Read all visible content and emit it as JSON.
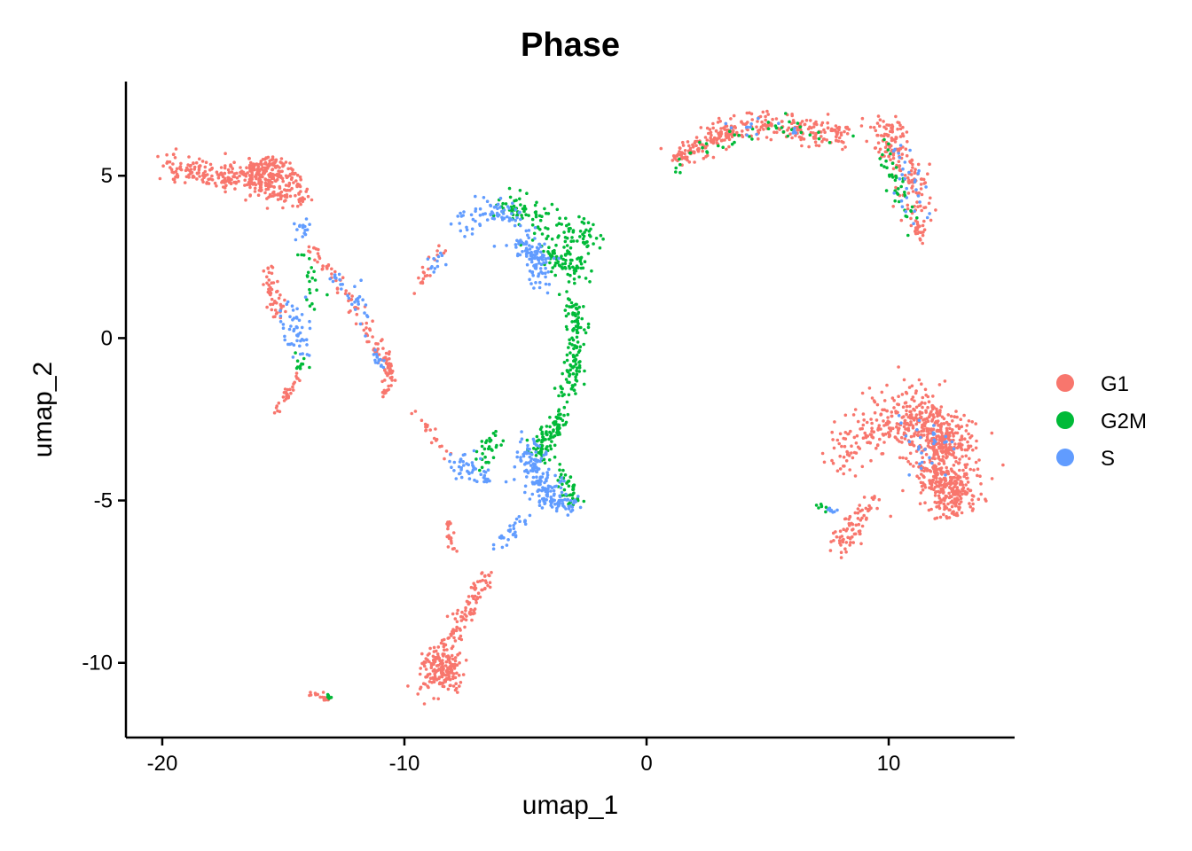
{
  "chart_data": {
    "type": "scatter",
    "title": "Phase",
    "xlabel": "umap_1",
    "ylabel": "umap_2",
    "xlim": [
      -21.5,
      15.2
    ],
    "ylim": [
      -12.3,
      7.9
    ],
    "x_ticks": [
      -20,
      -10,
      0,
      10
    ],
    "y_ticks": [
      5,
      0,
      -5,
      -10
    ],
    "grid": false,
    "legend_position": "right",
    "series": [
      {
        "name": "G1",
        "color": "#F8766D",
        "clusters": [
          {
            "x": [
              -19.8,
              -18.5,
              -17.2,
              -16.0,
              -15.3
            ],
            "y": [
              5.4,
              5.1,
              4.9,
              5.2,
              5.2
            ],
            "spread": 0.25,
            "n": 260
          },
          {
            "x": [
              -16.5,
              -15.6,
              -15.0
            ],
            "y": [
              5.0,
              4.8,
              4.4
            ],
            "spread": 0.3,
            "n": 120
          },
          {
            "x": [
              -15.1,
              -14.6,
              -14.2
            ],
            "y": [
              5.4,
              4.8,
              4.2
            ],
            "spread": 0.2,
            "n": 60
          },
          {
            "x": [
              -15.5,
              -15.6,
              -15.2
            ],
            "y": [
              2.2,
              1.5,
              0.8
            ],
            "spread": 0.15,
            "n": 50
          },
          {
            "x": [
              -14.3,
              -14.9,
              -15.3
            ],
            "y": [
              -1.1,
              -1.7,
              -2.3
            ],
            "spread": 0.1,
            "n": 30
          },
          {
            "x": [
              -14.0,
              -13.2,
              -12.4,
              -11.6,
              -11.0,
              -10.6
            ],
            "y": [
              2.8,
              2.2,
              1.4,
              0.5,
              -0.3,
              -1.2
            ],
            "spread": 0.15,
            "n": 90
          },
          {
            "x": [
              -10.6,
              -10.7,
              -10.9
            ],
            "y": [
              -0.6,
              -1.3,
              -1.8
            ],
            "spread": 0.1,
            "n": 30
          },
          {
            "x": [
              -9.5,
              -9.0,
              -8.5
            ],
            "y": [
              1.5,
              2.2,
              2.8
            ],
            "spread": 0.12,
            "n": 20
          },
          {
            "x": [
              -9.5,
              -8.8,
              -8.2
            ],
            "y": [
              -2.3,
              -3.0,
              -3.6
            ],
            "spread": 0.12,
            "n": 20
          },
          {
            "x": [
              -8.3,
              -8.1,
              -7.9
            ],
            "y": [
              -5.5,
              -6.1,
              -6.6
            ],
            "spread": 0.1,
            "n": 20
          },
          {
            "x": [
              -6.5,
              -7.2,
              -7.8,
              -8.4,
              -8.8
            ],
            "y": [
              -7.2,
              -8.1,
              -8.9,
              -9.5,
              -10.0
            ],
            "spread": 0.2,
            "n": 120
          },
          {
            "x": [
              -8.9,
              -8.5,
              -8.0
            ],
            "y": [
              -10.2,
              -10.5,
              -10.0
            ],
            "spread": 0.35,
            "n": 150
          },
          {
            "x": [
              -13.9,
              -13.5,
              -13.1
            ],
            "y": [
              -10.9,
              -11.0,
              -11.1
            ],
            "spread": 0.06,
            "n": 20
          },
          {
            "x": [
              1.2,
              2.2,
              3.3,
              4.5,
              5.8,
              7.0,
              8.2
            ],
            "y": [
              5.5,
              5.9,
              6.3,
              6.6,
              6.5,
              6.3,
              6.3
            ],
            "spread": 0.25,
            "n": 320
          },
          {
            "x": [
              9.6,
              10.3,
              10.9,
              11.3
            ],
            "y": [
              6.6,
              6.0,
              5.0,
              3.6
            ],
            "spread": 0.35,
            "n": 170
          },
          {
            "x": [
              11.2,
              11.3
            ],
            "y": [
              3.6,
              3.0
            ],
            "spread": 0.1,
            "n": 20
          },
          {
            "x": [
              10.5,
              11.5,
              12.3,
              12.8
            ],
            "y": [
              -2.2,
              -2.7,
              -3.2,
              -3.7
            ],
            "spread": 0.6,
            "n": 450
          },
          {
            "x": [
              11.8,
              12.4,
              13.0
            ],
            "y": [
              -4.2,
              -4.7,
              -5.0
            ],
            "spread": 0.45,
            "n": 260
          },
          {
            "x": [
              8.0,
              8.7,
              9.4,
              10.2
            ],
            "y": [
              -3.8,
              -3.0,
              -2.8,
              -2.6
            ],
            "spread": 0.45,
            "n": 120
          },
          {
            "x": [
              7.9,
              8.5,
              9.5
            ],
            "y": [
              -6.5,
              -5.7,
              -5.0
            ],
            "spread": 0.25,
            "n": 80
          }
        ]
      },
      {
        "name": "G2M",
        "color": "#00BA38",
        "clusters": [
          {
            "x": [
              -6.1,
              -5.0,
              -3.9,
              -2.9,
              -2.2
            ],
            "y": [
              4.1,
              3.9,
              3.6,
              3.2,
              3.0
            ],
            "spread": 0.3,
            "n": 110
          },
          {
            "x": [
              -4.2,
              -3.5,
              -2.8
            ],
            "y": [
              2.8,
              2.4,
              2.0
            ],
            "spread": 0.35,
            "n": 90
          },
          {
            "x": [
              -3.1,
              -2.9,
              -3.0,
              -3.3
            ],
            "y": [
              1.3,
              0.3,
              -0.7,
              -1.7
            ],
            "spread": 0.2,
            "n": 130
          },
          {
            "x": [
              -3.5,
              -4.0,
              -4.5
            ],
            "y": [
              -2.4,
              -3.0,
              -3.6
            ],
            "spread": 0.25,
            "n": 100
          },
          {
            "x": [
              -3.6,
              -3.2,
              -3.0
            ],
            "y": [
              -4.0,
              -4.8,
              -5.2
            ],
            "spread": 0.2,
            "n": 40
          },
          {
            "x": [
              -7.0,
              -6.5,
              -6.2
            ],
            "y": [
              -3.9,
              -3.4,
              -3.0
            ],
            "spread": 0.2,
            "n": 30
          },
          {
            "x": [
              -14.2,
              -13.8,
              -13.6
            ],
            "y": [
              2.8,
              1.9,
              0.8
            ],
            "spread": 0.2,
            "n": 20
          },
          {
            "x": [
              -14.3,
              -14.1
            ],
            "y": [
              -0.6,
              -1.0
            ],
            "spread": 0.15,
            "n": 10
          },
          {
            "x": [
              1.0,
              2.5,
              4.0,
              5.5,
              7.0,
              8.5
            ],
            "y": [
              5.2,
              5.8,
              6.3,
              6.5,
              6.4,
              6.3
            ],
            "spread": 0.2,
            "n": 40
          },
          {
            "x": [
              9.8,
              10.4,
              11.0
            ],
            "y": [
              5.6,
              4.6,
              3.8
            ],
            "spread": 0.3,
            "n": 40
          },
          {
            "x": [
              7.2,
              7.5
            ],
            "y": [
              -5.2,
              -5.3
            ],
            "spread": 0.08,
            "n": 8
          },
          {
            "x": [
              -13.2,
              -13.0
            ],
            "y": [
              -11.0,
              -11.1
            ],
            "spread": 0.05,
            "n": 5
          }
        ]
      },
      {
        "name": "S",
        "color": "#619CFF",
        "clusters": [
          {
            "x": [
              -7.8,
              -7.0,
              -6.0,
              -5.2
            ],
            "y": [
              3.3,
              3.9,
              4.0,
              3.6
            ],
            "spread": 0.25,
            "n": 70
          },
          {
            "x": [
              -5.2,
              -4.6,
              -4.2
            ],
            "y": [
              3.0,
              2.4,
              1.9
            ],
            "spread": 0.3,
            "n": 110
          },
          {
            "x": [
              -8.8,
              -8.3
            ],
            "y": [
              2.2,
              2.6
            ],
            "spread": 0.15,
            "n": 12
          },
          {
            "x": [
              -4.9,
              -4.5,
              -4.1
            ],
            "y": [
              -3.4,
              -4.2,
              -5.0
            ],
            "spread": 0.3,
            "n": 150
          },
          {
            "x": [
              -4.0,
              -3.4,
              -2.9
            ],
            "y": [
              -4.9,
              -5.1,
              -5.2
            ],
            "spread": 0.2,
            "n": 50
          },
          {
            "x": [
              -5.0,
              -5.6,
              -6.2
            ],
            "y": [
              -5.6,
              -6.0,
              -6.5
            ],
            "spread": 0.15,
            "n": 30
          },
          {
            "x": [
              -8.0,
              -7.2,
              -6.4
            ],
            "y": [
              -3.8,
              -4.1,
              -4.3
            ],
            "spread": 0.25,
            "n": 50
          },
          {
            "x": [
              -14.8,
              -14.5,
              -14.2
            ],
            "y": [
              1.0,
              0.2,
              -0.4
            ],
            "spread": 0.3,
            "n": 50
          },
          {
            "x": [
              -14.5,
              -14.0
            ],
            "y": [
              3.5,
              3.2
            ],
            "spread": 0.2,
            "n": 15
          },
          {
            "x": [
              -13.0,
              -12.0,
              -11.3
            ],
            "y": [
              2.0,
              1.3,
              0.0
            ],
            "spread": 0.2,
            "n": 30
          },
          {
            "x": [
              -11.2,
              -10.9
            ],
            "y": [
              -0.5,
              -0.9
            ],
            "spread": 0.15,
            "n": 15
          },
          {
            "x": [
              3.5,
              5.0,
              6.5
            ],
            "y": [
              6.4,
              6.6,
              6.4
            ],
            "spread": 0.2,
            "n": 15
          },
          {
            "x": [
              10.2,
              10.8,
              11.2
            ],
            "y": [
              6.0,
              4.8,
              3.8
            ],
            "spread": 0.3,
            "n": 30
          },
          {
            "x": [
              11.0,
              12.0
            ],
            "y": [
              -3.0,
              -3.4
            ],
            "spread": 0.5,
            "n": 30
          },
          {
            "x": [
              7.5,
              7.8
            ],
            "y": [
              -5.2,
              -5.4
            ],
            "spread": 0.08,
            "n": 8
          }
        ]
      }
    ]
  }
}
